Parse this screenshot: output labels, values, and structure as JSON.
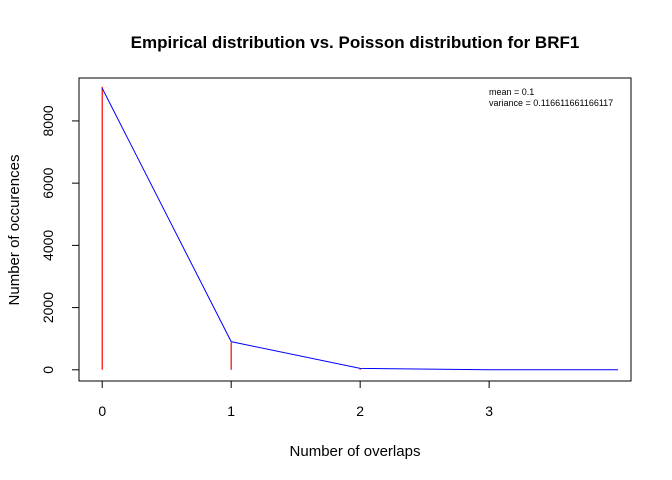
{
  "chart_data": {
    "type": "line",
    "title": "Empirical distribution vs. Poisson distribution for BRF1",
    "xlabel": "Number of overlaps",
    "ylabel": "Number of occurences",
    "xlim": [
      -0.18,
      4.1
    ],
    "ylim": [
      -360,
      9380
    ],
    "x_ticks": [
      0,
      1,
      2,
      3
    ],
    "y_ticks": [
      0,
      2000,
      4000,
      6000,
      8000
    ],
    "series": [
      {
        "name": "Empirical distribution",
        "style": "histogram-spikes",
        "color": "#ff0000",
        "x": [
          0,
          1,
          2,
          3
        ],
        "values": [
          9100,
          880,
          40,
          3
        ]
      },
      {
        "name": "Poisson distribution",
        "style": "line",
        "color": "#0000ff",
        "x": [
          0,
          1,
          2,
          3,
          4
        ],
        "values": [
          9050,
          905,
          45,
          1.5,
          0
        ]
      }
    ],
    "annotations": {
      "mean_label": "mean =  0.1",
      "variance_label": "variance =  0.116611661166117"
    }
  }
}
